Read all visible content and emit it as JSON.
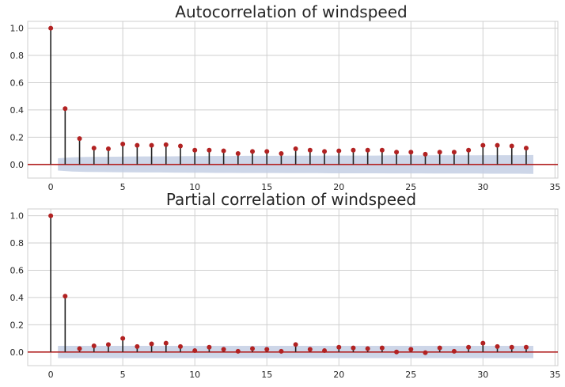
{
  "chart_data": [
    {
      "type": "stem",
      "title": "Autocorrelation of windspeed",
      "xlabel": "",
      "ylabel": "",
      "xlim": [
        -1.6,
        35.2
      ],
      "ylim": [
        -0.1,
        1.05
      ],
      "xticks": [
        0,
        5,
        10,
        15,
        20,
        25,
        30,
        35
      ],
      "yticks": [
        0.0,
        0.2,
        0.4,
        0.6,
        0.8,
        1.0
      ],
      "ytick_labels": [
        "0.0",
        "0.2",
        "0.4",
        "0.6",
        "0.8",
        "1.0"
      ],
      "grid": true,
      "x": [
        0,
        1,
        2,
        3,
        4,
        5,
        6,
        7,
        8,
        9,
        10,
        11,
        12,
        13,
        14,
        15,
        16,
        17,
        18,
        19,
        20,
        21,
        22,
        23,
        24,
        25,
        26,
        27,
        28,
        29,
        30,
        31,
        32,
        33
      ],
      "values": [
        1.0,
        0.41,
        0.19,
        0.12,
        0.115,
        0.15,
        0.14,
        0.14,
        0.145,
        0.135,
        0.105,
        0.105,
        0.1,
        0.08,
        0.095,
        0.095,
        0.08,
        0.115,
        0.105,
        0.095,
        0.1,
        0.105,
        0.105,
        0.105,
        0.09,
        0.09,
        0.075,
        0.09,
        0.09,
        0.105,
        0.14,
        0.14,
        0.135,
        0.12
      ],
      "confint_x": [
        0.5,
        33.5
      ],
      "confint_upper": [
        0.045,
        0.052,
        0.055,
        0.056,
        0.057,
        0.058,
        0.059,
        0.059,
        0.06,
        0.061,
        0.061,
        0.062,
        0.062,
        0.063,
        0.063,
        0.063,
        0.064,
        0.064,
        0.064,
        0.065,
        0.065,
        0.065,
        0.065,
        0.066,
        0.066,
        0.066,
        0.067,
        0.067,
        0.067,
        0.067,
        0.068,
        0.068,
        0.068,
        0.069
      ],
      "colors": {
        "markers": "#b22222",
        "stems": "#222222",
        "zero_line": "#b22222",
        "confint": "#c4cfe4",
        "grid": "#cfcfcf"
      }
    },
    {
      "type": "stem",
      "title": "Partial correlation of windspeed",
      "xlabel": "",
      "ylabel": "",
      "xlim": [
        -1.6,
        35.2
      ],
      "ylim": [
        -0.1,
        1.05
      ],
      "xticks": [
        0,
        5,
        10,
        15,
        20,
        25,
        30,
        35
      ],
      "yticks": [
        0.0,
        0.2,
        0.4,
        0.6,
        0.8,
        1.0
      ],
      "ytick_labels": [
        "0.0",
        "0.2",
        "0.4",
        "0.6",
        "0.8",
        "1.0"
      ],
      "grid": true,
      "x": [
        0,
        1,
        2,
        3,
        4,
        5,
        6,
        7,
        8,
        9,
        10,
        11,
        12,
        13,
        14,
        15,
        16,
        17,
        18,
        19,
        20,
        21,
        22,
        23,
        24,
        25,
        26,
        27,
        28,
        29,
        30,
        31,
        32,
        33
      ],
      "values": [
        1.0,
        0.41,
        0.025,
        0.045,
        0.055,
        0.1,
        0.04,
        0.06,
        0.065,
        0.04,
        0.01,
        0.035,
        0.02,
        0.005,
        0.025,
        0.02,
        0.005,
        0.055,
        0.02,
        0.01,
        0.035,
        0.03,
        0.025,
        0.03,
        0.0,
        0.02,
        -0.005,
        0.03,
        0.005,
        0.035,
        0.065,
        0.04,
        0.035,
        0.035
      ],
      "confint_x": [
        0.5,
        33.5
      ],
      "confint_upper": [
        0.045,
        0.045,
        0.045,
        0.045,
        0.045,
        0.045,
        0.045,
        0.045,
        0.045,
        0.045,
        0.045,
        0.045,
        0.045,
        0.045,
        0.045,
        0.045,
        0.045,
        0.045,
        0.045,
        0.045,
        0.045,
        0.045,
        0.045,
        0.045,
        0.045,
        0.045,
        0.045,
        0.045,
        0.045,
        0.045,
        0.045,
        0.045,
        0.045,
        0.045
      ],
      "colors": {
        "markers": "#b22222",
        "stems": "#222222",
        "zero_line": "#b22222",
        "confint": "#c4cfe4",
        "grid": "#cfcfcf"
      }
    }
  ]
}
